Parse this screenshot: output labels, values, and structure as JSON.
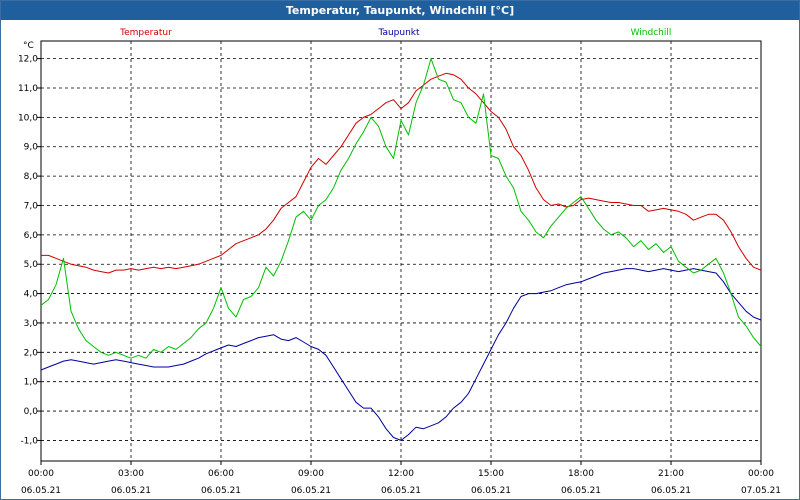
{
  "window": {
    "title": "Temperatur, Taupunkt, Windchill [°C]"
  },
  "chart_data": {
    "type": "line",
    "title": "Temperatur, Taupunkt, Windchill [°C]",
    "ylabel": "°C",
    "xlabel": "",
    "ylim": [
      -1.7,
      12.6
    ],
    "xlim": [
      0,
      24
    ],
    "y_ticks": [
      "12,0",
      "11,0",
      "10,0",
      "9,0",
      "8,0",
      "7,0",
      "6,0",
      "5,0",
      "4,0",
      "3,0",
      "2,0",
      "1,0",
      "0,0",
      "-1,0"
    ],
    "x_ticks": [
      {
        "time": "00:00",
        "date": "06.05.21"
      },
      {
        "time": "03:00",
        "date": "06.05.21"
      },
      {
        "time": "06:00",
        "date": "06.05.21"
      },
      {
        "time": "09:00",
        "date": "06.05.21"
      },
      {
        "time": "12:00",
        "date": "06.05.21"
      },
      {
        "time": "15:00",
        "date": "06.05.21"
      },
      {
        "time": "18:00",
        "date": "06.05.21"
      },
      {
        "time": "21:00",
        "date": "06.05.21"
      },
      {
        "time": "00:00",
        "date": "07.05.21"
      }
    ],
    "grid": true,
    "legend": "top",
    "series": [
      {
        "name": "Temperatur",
        "color": "#d00000",
        "x": [
          0,
          0.25,
          0.5,
          0.75,
          1,
          1.25,
          1.5,
          1.75,
          2,
          2.25,
          2.5,
          2.75,
          3,
          3.25,
          3.5,
          3.75,
          4,
          4.25,
          4.5,
          4.75,
          5,
          5.25,
          5.5,
          5.75,
          6,
          6.25,
          6.5,
          6.75,
          7,
          7.25,
          7.5,
          7.75,
          8,
          8.25,
          8.5,
          8.75,
          9,
          9.25,
          9.5,
          9.75,
          10,
          10.25,
          10.5,
          10.75,
          11,
          11.25,
          11.5,
          11.75,
          12,
          12.25,
          12.5,
          12.75,
          13,
          13.25,
          13.5,
          13.75,
          14,
          14.25,
          14.5,
          14.75,
          15,
          15.25,
          15.5,
          15.75,
          16,
          16.25,
          16.5,
          16.75,
          17,
          17.25,
          17.5,
          17.75,
          18,
          18.25,
          18.5,
          18.75,
          19,
          19.25,
          19.5,
          19.75,
          20,
          20.25,
          20.5,
          20.75,
          21,
          21.25,
          21.5,
          21.75,
          22,
          22.25,
          22.5,
          22.75,
          23,
          23.25,
          23.5,
          23.75,
          24
        ],
        "values": [
          5.3,
          5.3,
          5.2,
          5.1,
          5.0,
          4.95,
          4.9,
          4.8,
          4.75,
          4.7,
          4.8,
          4.8,
          4.85,
          4.8,
          4.85,
          4.9,
          4.85,
          4.9,
          4.85,
          4.9,
          4.95,
          5.0,
          5.1,
          5.2,
          5.3,
          5.5,
          5.7,
          5.8,
          5.9,
          6.0,
          6.2,
          6.5,
          6.9,
          7.1,
          7.3,
          7.8,
          8.3,
          8.6,
          8.4,
          8.7,
          9.0,
          9.4,
          9.8,
          10.0,
          10.1,
          10.3,
          10.5,
          10.6,
          10.3,
          10.5,
          10.9,
          11.1,
          11.3,
          11.4,
          11.5,
          11.45,
          11.3,
          11.0,
          10.8,
          10.5,
          10.2,
          10.0,
          9.6,
          9.0,
          8.7,
          8.2,
          7.6,
          7.2,
          7.0,
          7.05,
          6.95,
          7.0,
          7.2,
          7.25,
          7.2,
          7.15,
          7.1,
          7.1,
          7.05,
          7.0,
          7.0,
          6.8,
          6.85,
          6.9,
          6.85,
          6.8,
          6.7,
          6.5,
          6.6,
          6.7,
          6.7,
          6.5,
          6.1,
          5.6,
          5.2,
          4.9,
          4.8
        ]
      },
      {
        "name": "Taupunkt",
        "color": "#0000a0",
        "x": [
          0,
          0.25,
          0.5,
          0.75,
          1,
          1.25,
          1.5,
          1.75,
          2,
          2.25,
          2.5,
          2.75,
          3,
          3.25,
          3.5,
          3.75,
          4,
          4.25,
          4.5,
          4.75,
          5,
          5.25,
          5.5,
          5.75,
          6,
          6.25,
          6.5,
          6.75,
          7,
          7.25,
          7.5,
          7.75,
          8,
          8.25,
          8.5,
          8.75,
          9,
          9.25,
          9.5,
          9.75,
          10,
          10.25,
          10.5,
          10.75,
          11,
          11.25,
          11.5,
          11.75,
          12,
          12.25,
          12.5,
          12.75,
          13,
          13.25,
          13.5,
          13.75,
          14,
          14.25,
          14.5,
          14.75,
          15,
          15.25,
          15.5,
          15.75,
          16,
          16.25,
          16.5,
          16.75,
          17,
          17.25,
          17.5,
          17.75,
          18,
          18.25,
          18.5,
          18.75,
          19,
          19.25,
          19.5,
          19.75,
          20,
          20.25,
          20.5,
          20.75,
          21,
          21.25,
          21.5,
          21.75,
          22,
          22.25,
          22.5,
          22.75,
          23,
          23.25,
          23.5,
          23.75,
          24
        ],
        "values": [
          1.4,
          1.5,
          1.6,
          1.7,
          1.75,
          1.7,
          1.65,
          1.6,
          1.65,
          1.7,
          1.75,
          1.7,
          1.65,
          1.6,
          1.55,
          1.5,
          1.5,
          1.5,
          1.55,
          1.6,
          1.7,
          1.8,
          1.95,
          2.05,
          2.15,
          2.25,
          2.2,
          2.3,
          2.4,
          2.5,
          2.55,
          2.6,
          2.45,
          2.4,
          2.5,
          2.35,
          2.2,
          2.1,
          1.9,
          1.5,
          1.1,
          0.7,
          0.3,
          0.1,
          0.1,
          -0.2,
          -0.6,
          -0.9,
          -1.0,
          -0.8,
          -0.55,
          -0.6,
          -0.5,
          -0.4,
          -0.2,
          0.1,
          0.3,
          0.6,
          1.1,
          1.6,
          2.1,
          2.6,
          3.0,
          3.5,
          3.9,
          4.0,
          4.0,
          4.05,
          4.1,
          4.2,
          4.3,
          4.35,
          4.4,
          4.5,
          4.6,
          4.7,
          4.75,
          4.8,
          4.85,
          4.85,
          4.8,
          4.75,
          4.8,
          4.85,
          4.8,
          4.75,
          4.8,
          4.85,
          4.8,
          4.75,
          4.7,
          4.4,
          4.0,
          3.7,
          3.4,
          3.2,
          3.1
        ]
      },
      {
        "name": "Windchill",
        "color": "#00c000",
        "x": [
          0,
          0.25,
          0.5,
          0.75,
          1,
          1.25,
          1.5,
          1.75,
          2,
          2.25,
          2.5,
          2.75,
          3,
          3.25,
          3.5,
          3.75,
          4,
          4.25,
          4.5,
          4.75,
          5,
          5.25,
          5.5,
          5.75,
          6,
          6.25,
          6.5,
          6.75,
          7,
          7.25,
          7.5,
          7.75,
          8,
          8.25,
          8.5,
          8.75,
          9,
          9.25,
          9.5,
          9.75,
          10,
          10.25,
          10.5,
          10.75,
          11,
          11.25,
          11.5,
          11.75,
          12,
          12.25,
          12.5,
          12.75,
          13,
          13.25,
          13.5,
          13.75,
          14,
          14.25,
          14.5,
          14.75,
          15,
          15.25,
          15.5,
          15.75,
          16,
          16.25,
          16.5,
          16.75,
          17,
          17.25,
          17.5,
          17.75,
          18,
          18.25,
          18.5,
          18.75,
          19,
          19.25,
          19.5,
          19.75,
          20,
          20.25,
          20.5,
          20.75,
          21,
          21.25,
          21.5,
          21.75,
          22,
          22.25,
          22.5,
          22.75,
          23,
          23.25,
          23.5,
          23.75,
          24
        ],
        "values": [
          3.6,
          3.8,
          4.3,
          5.2,
          3.4,
          2.8,
          2.4,
          2.2,
          2.0,
          1.9,
          2.0,
          1.9,
          1.8,
          1.9,
          1.8,
          2.1,
          2.0,
          2.2,
          2.1,
          2.3,
          2.5,
          2.8,
          3.0,
          3.5,
          4.2,
          3.5,
          3.2,
          3.8,
          3.9,
          4.2,
          4.9,
          4.6,
          5.1,
          5.8,
          6.6,
          6.8,
          6.5,
          7.0,
          7.2,
          7.6,
          8.2,
          8.6,
          9.1,
          9.5,
          10.0,
          9.7,
          9.0,
          8.6,
          9.9,
          9.4,
          10.5,
          11.1,
          12.0,
          11.3,
          11.2,
          10.6,
          10.5,
          10.0,
          9.8,
          10.8,
          8.7,
          8.6,
          8.0,
          7.6,
          6.8,
          6.5,
          6.1,
          5.9,
          6.3,
          6.6,
          6.9,
          7.1,
          7.3,
          6.9,
          6.5,
          6.2,
          6.0,
          6.1,
          5.9,
          5.6,
          5.8,
          5.5,
          5.7,
          5.4,
          5.6,
          5.1,
          4.9,
          4.7,
          4.8,
          5.0,
          5.2,
          4.7,
          4.0,
          3.2,
          2.9,
          2.5,
          2.2
        ]
      }
    ]
  }
}
